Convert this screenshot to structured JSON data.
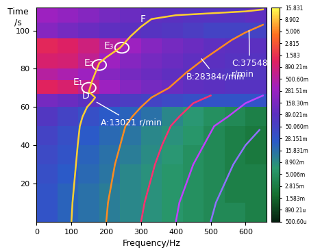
{
  "chart_data": {
    "type": "spectrogram",
    "x_label": "Frequency/Hz",
    "y_label": "Time\n/s",
    "xlim": [
      0,
      660
    ],
    "ylim": [
      0,
      112
    ],
    "xticks": [
      0,
      100,
      200,
      300,
      400,
      500,
      600
    ],
    "yticks": [
      20,
      40,
      60,
      80,
      100
    ],
    "log": true,
    "cells": {
      "x_edges": [
        0,
        60,
        120,
        180,
        240,
        300,
        360,
        420,
        480,
        540,
        600,
        660
      ],
      "y_edges": [
        0,
        10,
        20,
        30,
        40,
        50,
        60,
        67,
        74,
        80,
        88,
        96,
        104,
        112
      ],
      "values": [
        [
          0.03,
          0.02,
          0.015,
          0.012,
          0.01,
          0.008,
          0.006,
          0.005,
          0.004,
          0.004,
          0.003
        ],
        [
          0.03,
          0.02,
          0.015,
          0.012,
          0.01,
          0.008,
          0.006,
          0.005,
          0.004,
          0.003,
          0.003
        ],
        [
          0.035,
          0.025,
          0.018,
          0.014,
          0.01,
          0.008,
          0.006,
          0.005,
          0.004,
          0.003,
          0.003
        ],
        [
          0.04,
          0.03,
          0.02,
          0.015,
          0.012,
          0.009,
          0.007,
          0.005,
          0.004,
          0.003,
          0.0025
        ],
        [
          0.05,
          0.035,
          0.025,
          0.018,
          0.014,
          0.01,
          0.008,
          0.006,
          0.004,
          0.003,
          0.0025
        ],
        [
          0.07,
          0.05,
          0.035,
          0.025,
          0.02,
          0.015,
          0.01,
          0.007,
          0.005,
          0.004,
          0.003
        ],
        [
          0.15,
          0.12,
          0.09,
          0.07,
          0.06,
          0.05,
          0.04,
          0.035,
          0.03,
          0.03,
          0.03
        ],
        [
          1.2,
          1.0,
          0.6,
          0.3,
          0.2,
          0.15,
          0.12,
          0.1,
          0.09,
          0.08,
          0.08
        ],
        [
          0.5,
          0.4,
          0.3,
          0.2,
          0.15,
          0.12,
          0.1,
          0.09,
          0.08,
          0.07,
          0.07
        ],
        [
          1.0,
          0.9,
          0.6,
          0.3,
          0.2,
          0.15,
          0.12,
          0.1,
          0.09,
          0.08,
          0.08
        ],
        [
          1.3,
          1.1,
          0.8,
          0.5,
          0.3,
          0.2,
          0.15,
          0.12,
          0.1,
          0.09,
          0.09
        ],
        [
          0.2,
          0.15,
          0.12,
          0.1,
          0.09,
          0.08,
          0.07,
          0.06,
          0.05,
          0.05,
          0.05
        ],
        [
          0.3,
          0.25,
          0.2,
          0.15,
          0.12,
          0.1,
          0.09,
          0.08,
          0.08,
          0.08,
          0.1
        ]
      ]
    },
    "colorbar": {
      "range": [
        0.0005006,
        15.831
      ],
      "ticks": [
        {
          "value": 15.831,
          "label": "15.831"
        },
        {
          "value": 8.902,
          "label": "8.902"
        },
        {
          "value": 5.006,
          "label": "5.006"
        },
        {
          "value": 2.815,
          "label": "2.815"
        },
        {
          "value": 1.583,
          "label": "1.583"
        },
        {
          "value": 0.89021,
          "label": "890.21m"
        },
        {
          "value": 0.5006,
          "label": "500.60m"
        },
        {
          "value": 0.28151,
          "label": "281.51m"
        },
        {
          "value": 0.1583,
          "label": "158.30m"
        },
        {
          "value": 0.089021,
          "label": "89.021m"
        },
        {
          "value": 0.05006,
          "label": "50.060m"
        },
        {
          "value": 0.028151,
          "label": "28.151m"
        },
        {
          "value": 0.015831,
          "label": "15.831m"
        },
        {
          "value": 0.008902,
          "label": "8.902m"
        },
        {
          "value": 0.005006,
          "label": "5.006m"
        },
        {
          "value": 0.002815,
          "label": "2.815m"
        },
        {
          "value": 0.001583,
          "label": "1.583m"
        },
        {
          "value": 0.00089021,
          "label": "890.21u"
        },
        {
          "value": 0.0005006,
          "label": "500.60u"
        }
      ]
    },
    "series": [
      {
        "color": "#ffd030",
        "x": [
          100,
          103,
          108,
          113,
          118,
          124,
          132,
          145,
          160,
          168,
          150,
          160,
          180,
          200,
          240,
          270,
          300,
          330,
          400,
          500,
          600,
          650
        ],
        "y": [
          0,
          10,
          20,
          30,
          40,
          50,
          55,
          60,
          63,
          65,
          68,
          74,
          83,
          86,
          91,
          97,
          102,
          106,
          108,
          109,
          110,
          111
        ]
      },
      {
        "color": "#ff8c20",
        "x": [
          200,
          205,
          215,
          225,
          240,
          255,
          275,
          300,
          330,
          380,
          430,
          480,
          520,
          560,
          600,
          650
        ],
        "y": [
          0,
          10,
          20,
          30,
          40,
          50,
          55,
          60,
          65,
          70,
          78,
          85,
          90,
          95,
          99,
          103
        ]
      },
      {
        "color": "#ff3070",
        "x": [
          300,
          310,
          325,
          340,
          360,
          385,
          410,
          450,
          500
        ],
        "y": [
          0,
          10,
          20,
          30,
          40,
          50,
          55,
          62,
          66
        ]
      },
      {
        "color": "#c040ff",
        "x": [
          400,
          410,
          430,
          450,
          480,
          510,
          550,
          600,
          650
        ],
        "y": [
          0,
          10,
          20,
          30,
          40,
          50,
          55,
          62,
          66
        ]
      },
      {
        "color": "#9070ff",
        "x": [
          500,
          515,
          540,
          565,
          600,
          640
        ],
        "y": [
          0,
          10,
          20,
          30,
          40,
          48
        ]
      }
    ],
    "annotations": [
      {
        "text": "A:13021 r/min",
        "point": [
          168,
          63
        ],
        "text_at": [
          185,
          52
        ]
      },
      {
        "text": "B:28384r/min",
        "point": [
          470,
          86
        ],
        "text_at": [
          430,
          76
        ]
      },
      {
        "text": "C:37548\nr/min",
        "point": [
          610,
          101
        ],
        "text_at": [
          560,
          80
        ]
      },
      {
        "text": "D",
        "point": [
          140,
          66
        ]
      },
      {
        "text": "E₁",
        "point": [
          118,
          73
        ]
      },
      {
        "text": "E₂",
        "point": [
          150,
          83
        ]
      },
      {
        "text": "E₃",
        "point": [
          208,
          92
        ]
      },
      {
        "text": "F",
        "point": [
          305,
          106
        ]
      }
    ],
    "ellipses": [
      {
        "text": "E₁",
        "center": [
          150,
          70
        ]
      },
      {
        "text": "E₂",
        "center": [
          180,
          82
        ]
      },
      {
        "text": "E₃",
        "center": [
          245,
          91
        ]
      }
    ]
  }
}
